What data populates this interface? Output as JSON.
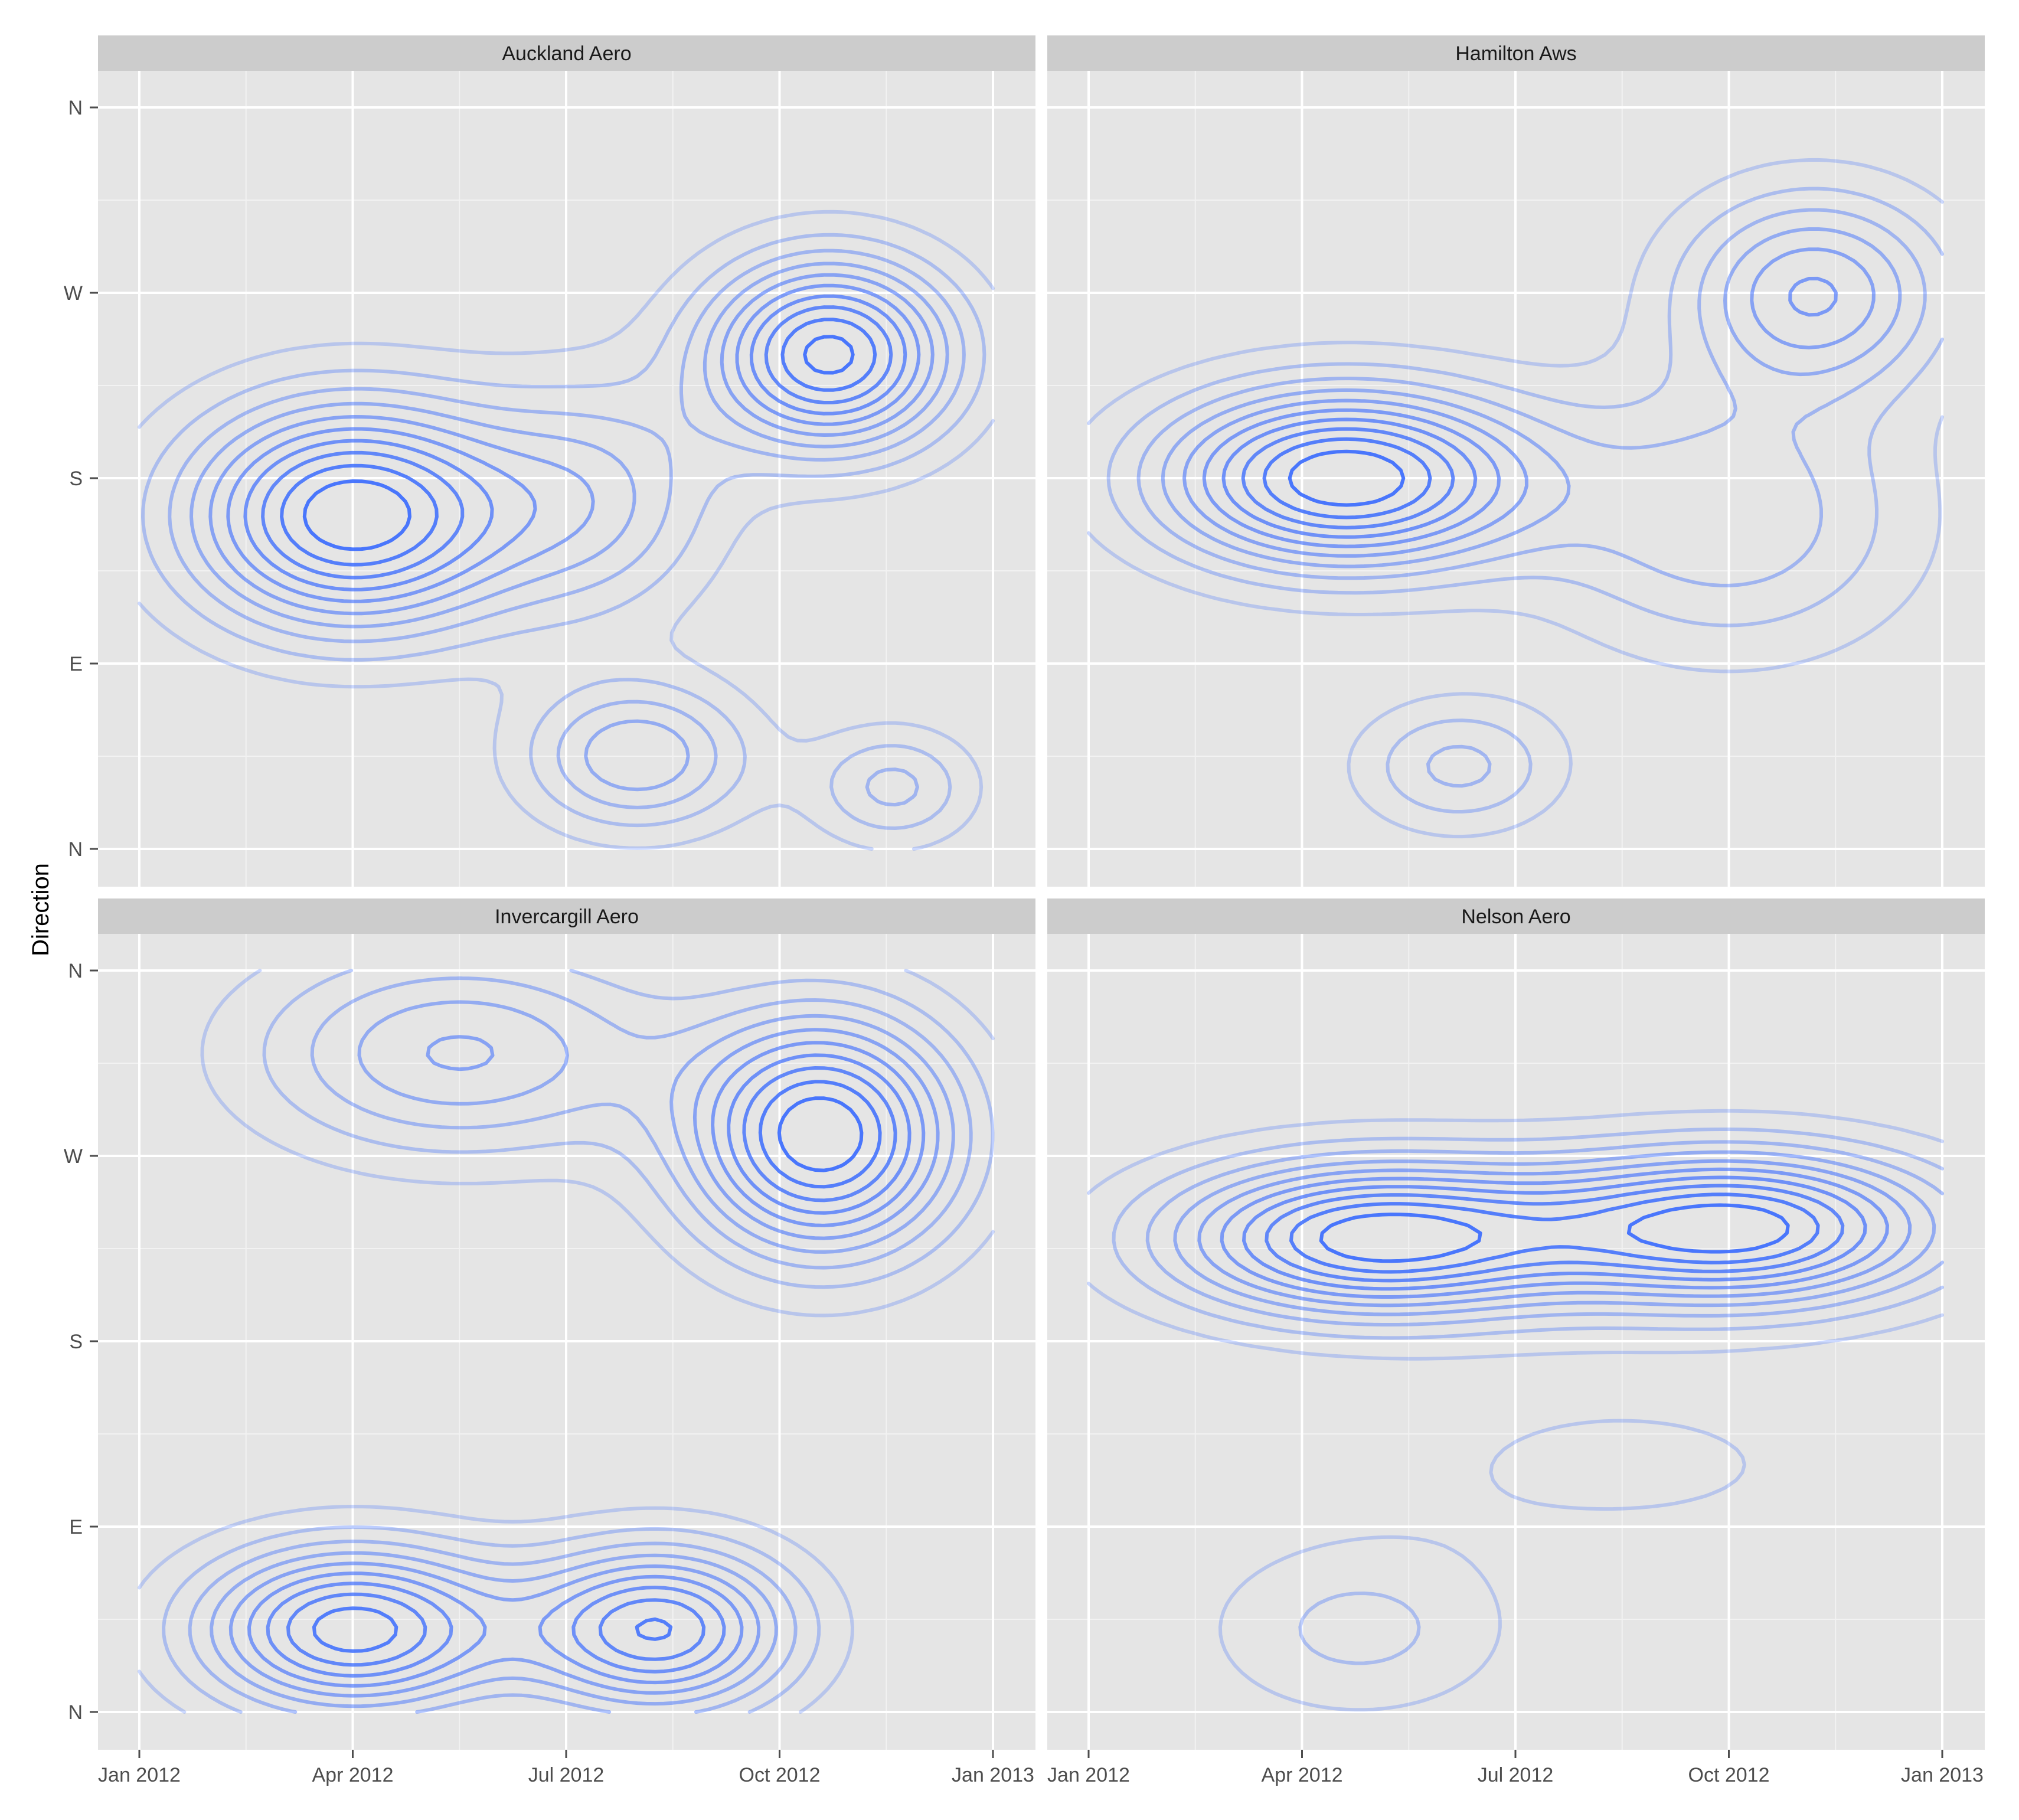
{
  "chart_data": {
    "type": "contour",
    "ylabel": "Direction",
    "xlabel": "",
    "x_ticks": [
      "Jan 2012",
      "Apr 2012",
      "Jul 2012",
      "Oct 2012",
      "Jan 2013"
    ],
    "x_range": [
      "2012-01-01",
      "2013-01-01"
    ],
    "y_ticks": [
      "N",
      "E",
      "S",
      "W",
      "N"
    ],
    "y_range_degrees": [
      0,
      360
    ],
    "grid": true,
    "colors": {
      "panel_bg": "#e5e5e5",
      "strip_bg": "#cccccc",
      "grid": "#ffffff",
      "contour": "#3366ff",
      "tick": "#4d4d4d"
    },
    "panels": [
      {
        "title": "Auckland Aero",
        "peaks": [
          {
            "month": 3.0,
            "direction_deg": 162,
            "strength": 1.0,
            "spread_month": 1.6,
            "spread_deg": 38
          },
          {
            "month": 9.7,
            "direction_deg": 240,
            "strength": 0.95,
            "spread_month": 1.2,
            "spread_deg": 32
          },
          {
            "month": 7.0,
            "direction_deg": 45,
            "strength": 0.45,
            "spread_month": 1.1,
            "spread_deg": 25
          },
          {
            "month": 10.6,
            "direction_deg": 30,
            "strength": 0.3,
            "spread_month": 0.8,
            "spread_deg": 20
          },
          {
            "month": 6.4,
            "direction_deg": 170,
            "strength": 0.35,
            "spread_month": 1.2,
            "spread_deg": 40
          }
        ]
      },
      {
        "title": "Hamilton Aws",
        "peaks": [
          {
            "month": 3.6,
            "direction_deg": 180,
            "strength": 1.0,
            "spread_month": 1.8,
            "spread_deg": 30
          },
          {
            "month": 10.2,
            "direction_deg": 270,
            "strength": 0.55,
            "spread_month": 1.3,
            "spread_deg": 34
          },
          {
            "month": 9.0,
            "direction_deg": 160,
            "strength": 0.35,
            "spread_month": 1.8,
            "spread_deg": 45
          },
          {
            "month": 5.2,
            "direction_deg": 40,
            "strength": 0.3,
            "spread_month": 1.0,
            "spread_deg": 22
          }
        ]
      },
      {
        "title": "Invercargill Aero",
        "peaks": [
          {
            "month": 9.6,
            "direction_deg": 280,
            "strength": 0.85,
            "spread_month": 1.3,
            "spread_deg": 40
          },
          {
            "month": 3.0,
            "direction_deg": 40,
            "strength": 0.75,
            "spread_month": 1.5,
            "spread_deg": 28
          },
          {
            "month": 7.3,
            "direction_deg": 40,
            "strength": 0.7,
            "spread_month": 1.3,
            "spread_deg": 28
          },
          {
            "month": 4.5,
            "direction_deg": 320,
            "strength": 0.4,
            "spread_month": 2.0,
            "spread_deg": 35
          }
        ]
      },
      {
        "title": "Nelson Aero",
        "peaks": [
          {
            "month": 4.0,
            "direction_deg": 230,
            "strength": 1.0,
            "spread_month": 2.0,
            "spread_deg": 26
          },
          {
            "month": 9.1,
            "direction_deg": 235,
            "strength": 1.0,
            "spread_month": 2.0,
            "spread_deg": 26
          },
          {
            "month": 3.8,
            "direction_deg": 40,
            "strength": 0.22,
            "spread_month": 1.5,
            "spread_deg": 30
          },
          {
            "month": 7.5,
            "direction_deg": 120,
            "strength": 0.12,
            "spread_month": 2.5,
            "spread_deg": 30
          }
        ]
      }
    ]
  }
}
